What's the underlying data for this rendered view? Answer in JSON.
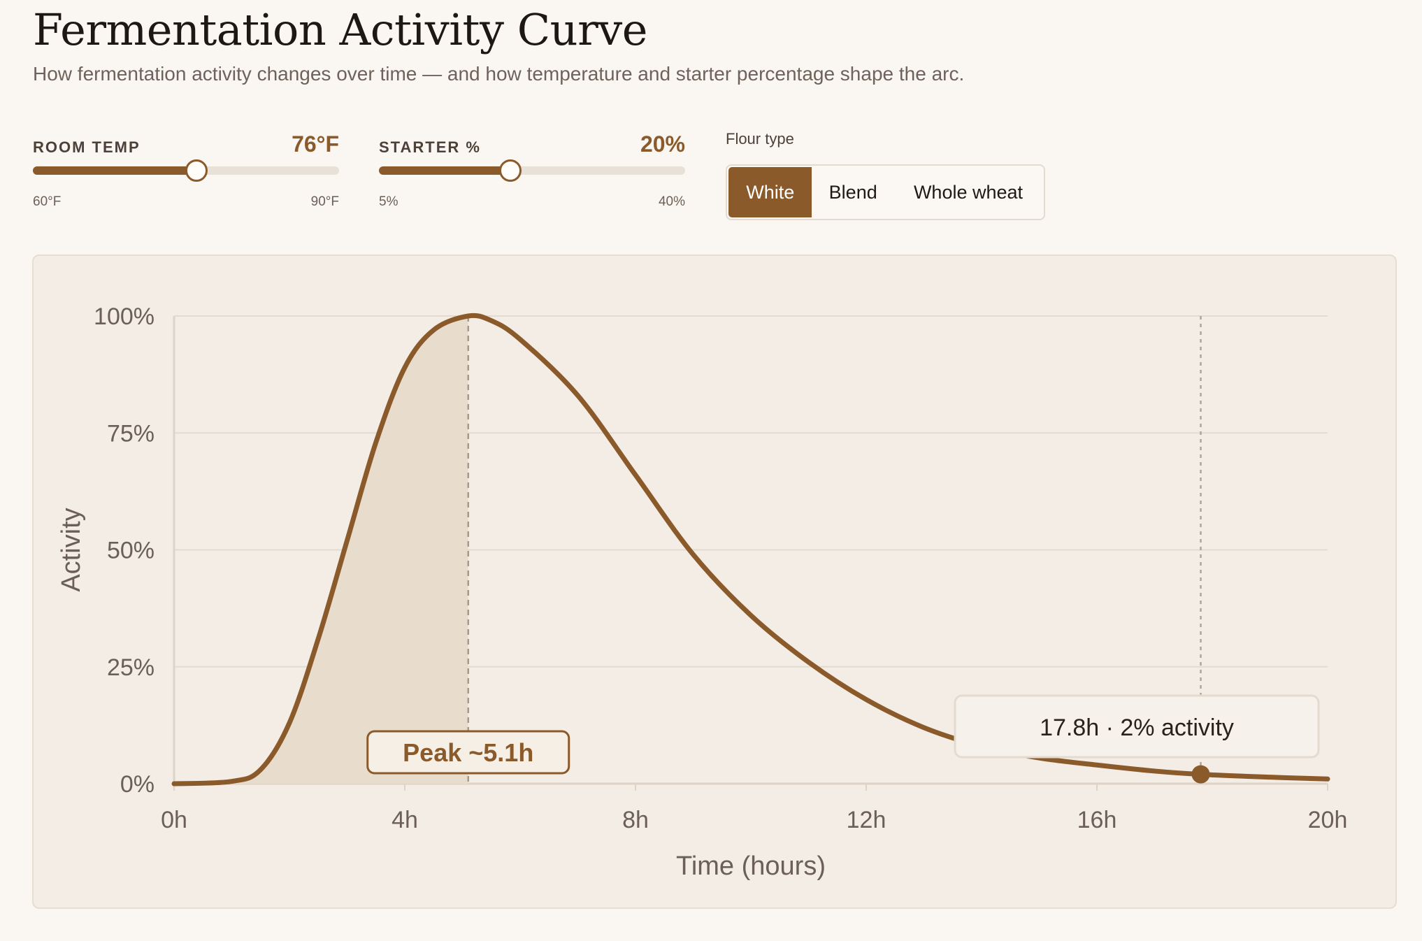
{
  "header": {
    "title": "Fermentation Activity Curve",
    "subtitle": "How fermentation activity changes over time — and how temperature and starter percentage shape the arc."
  },
  "controls": {
    "room_temp": {
      "label": "ROOM TEMP",
      "value_text": "76°F",
      "value": 76,
      "min_label": "60°F",
      "max_label": "90°F",
      "min": 60,
      "max": 90
    },
    "starter": {
      "label": "STARTER %",
      "value_text": "20%",
      "value": 20,
      "min_label": "5%",
      "max_label": "40%",
      "min": 5,
      "max": 40
    },
    "flour_type": {
      "label": "Flour type",
      "options": [
        "White",
        "Blend",
        "Whole wheat"
      ],
      "selected": "White"
    }
  },
  "colors": {
    "accent": "#8b5a2b",
    "track": "#e8e1d7",
    "chart_bg": "#f3ede5",
    "shade": "#e8dccd",
    "grid": "#e3dbd0",
    "axis_text": "#6b5f57"
  },
  "chart_data": {
    "type": "area",
    "xlabel": "Time (hours)",
    "ylabel": "Activity",
    "xlim": [
      0,
      20
    ],
    "ylim": [
      0,
      100
    ],
    "x_ticks": [
      0,
      4,
      8,
      12,
      16,
      20
    ],
    "x_tick_labels": [
      "0h",
      "4h",
      "8h",
      "12h",
      "16h",
      "20h"
    ],
    "y_ticks": [
      0,
      25,
      50,
      75,
      100
    ],
    "y_tick_labels": [
      "0%",
      "25%",
      "50%",
      "75%",
      "100%"
    ],
    "grid": true,
    "series": [
      {
        "x": [
          0,
          1,
          1.5,
          2,
          2.5,
          3,
          3.5,
          4,
          4.5,
          5.1,
          5.5,
          6,
          7,
          8,
          9,
          10,
          11,
          12,
          13,
          14,
          15,
          16,
          17,
          17.8,
          19,
          20
        ],
        "values": [
          0,
          0.5,
          3,
          13,
          31,
          52,
          73,
          89,
          97,
          100,
          99,
          95,
          83,
          66,
          49,
          36,
          26,
          18,
          12,
          8,
          5.5,
          4,
          2.7,
          2,
          1.4,
          1
        ]
      }
    ],
    "peak": {
      "x": 5.1,
      "label": "Peak ~5.1h"
    },
    "cursor": {
      "x": 17.8,
      "y": 2,
      "label": "17.8h · 2% activity"
    }
  }
}
